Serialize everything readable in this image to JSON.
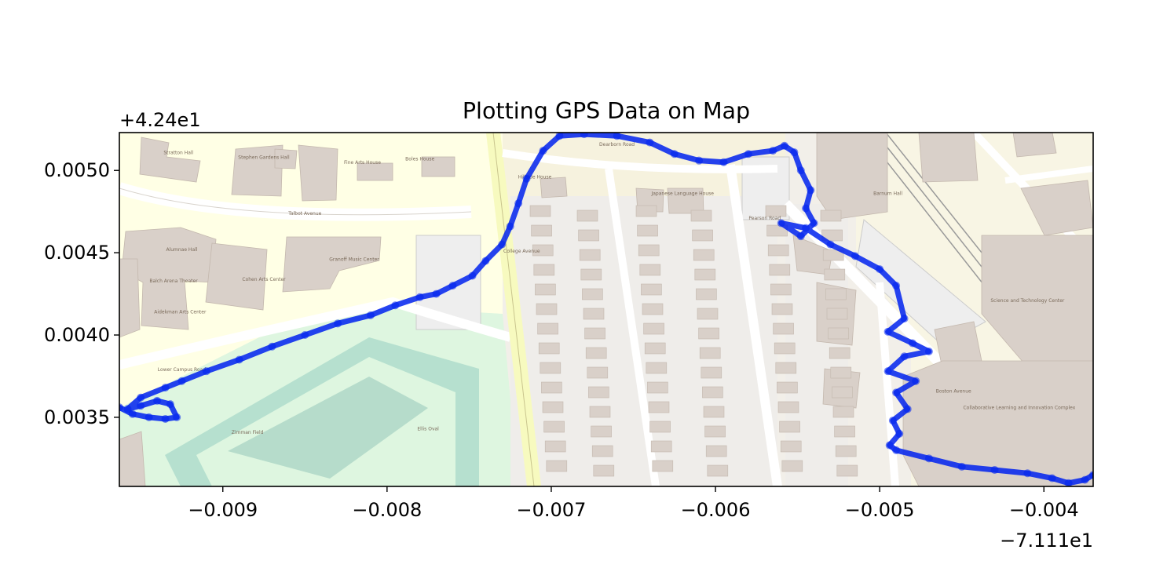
{
  "chart_data": {
    "type": "scatter",
    "title": "Plotting GPS Data on Map",
    "xlabel": "",
    "ylabel": "",
    "x_offset_label": "−7.111e1",
    "y_offset_label": "+4.24e1",
    "xlim": [
      -0.00963,
      -0.0037
    ],
    "ylim": [
      0.00308,
      0.00523
    ],
    "xticks": [
      {
        "value": -0.009,
        "label": "−0.009"
      },
      {
        "value": -0.008,
        "label": "−0.008"
      },
      {
        "value": -0.007,
        "label": "−0.007"
      },
      {
        "value": -0.006,
        "label": "−0.006"
      },
      {
        "value": -0.005,
        "label": "−0.005"
      },
      {
        "value": -0.004,
        "label": "−0.004"
      }
    ],
    "yticks": [
      {
        "value": 0.0035,
        "label": "0.0035"
      },
      {
        "value": 0.004,
        "label": "0.0040"
      },
      {
        "value": 0.0045,
        "label": "0.0045"
      },
      {
        "value": 0.005,
        "label": "0.0050"
      }
    ],
    "grid": false,
    "series": [
      {
        "color": "#0022ee",
        "x": [
          -0.00963,
          -0.00955,
          -0.00945,
          -0.00935,
          -0.00928,
          -0.00932,
          -0.0094,
          -0.0095,
          -0.00958,
          -0.0095,
          -0.00935,
          -0.00925,
          -0.0091,
          -0.0089,
          -0.0087,
          -0.0085,
          -0.0083,
          -0.0081,
          -0.00795,
          -0.0078,
          -0.0077,
          -0.0076,
          -0.00748,
          -0.0074,
          -0.0073,
          -0.00725,
          -0.0072,
          -0.00715,
          -0.00705,
          -0.00695,
          -0.0068,
          -0.0066,
          -0.0064,
          -0.00625,
          -0.0061,
          -0.00595,
          -0.0058,
          -0.00565,
          -0.00558,
          -0.00552,
          -0.00548,
          -0.00542,
          -0.00545,
          -0.0054,
          -0.00548,
          -0.0056,
          -0.00545,
          -0.0053,
          -0.00515,
          -0.005,
          -0.0049,
          -0.00485,
          -0.00495,
          -0.0048,
          -0.0047,
          -0.00485,
          -0.00495,
          -0.00478,
          -0.0049,
          -0.00483,
          -0.00492,
          -0.00488,
          -0.00494,
          -0.0049,
          -0.0047,
          -0.0045,
          -0.0043,
          -0.0041,
          -0.00395,
          -0.00385,
          -0.00375,
          -0.0037
        ],
        "y": [
          0.00356,
          0.00352,
          0.0035,
          0.00349,
          0.0035,
          0.00358,
          0.0036,
          0.00357,
          0.00355,
          0.00362,
          0.00368,
          0.00372,
          0.00378,
          0.00385,
          0.00393,
          0.004,
          0.00407,
          0.00412,
          0.00418,
          0.00423,
          0.00425,
          0.0043,
          0.00436,
          0.00445,
          0.00455,
          0.00466,
          0.0048,
          0.00495,
          0.00512,
          0.00521,
          0.00522,
          0.00521,
          0.00517,
          0.0051,
          0.00506,
          0.00505,
          0.0051,
          0.00512,
          0.00515,
          0.00511,
          0.005,
          0.00488,
          0.00477,
          0.00468,
          0.0046,
          0.00468,
          0.00465,
          0.00455,
          0.00448,
          0.0044,
          0.0043,
          0.0041,
          0.00402,
          0.00395,
          0.0039,
          0.00387,
          0.00378,
          0.00372,
          0.00365,
          0.00355,
          0.00348,
          0.0034,
          0.00333,
          0.0033,
          0.00325,
          0.0032,
          0.00318,
          0.00316,
          0.00313,
          0.0031,
          0.00312,
          0.00315
        ]
      }
    ],
    "map_labels": [
      {
        "text": "Stratton Hall",
        "x": -0.00927,
        "y": 0.0051
      },
      {
        "text": "Stephen Gardens Hall",
        "x": -0.00875,
        "y": 0.00507
      },
      {
        "text": "Fine Arts House",
        "x": -0.00815,
        "y": 0.00504
      },
      {
        "text": "Boles House",
        "x": -0.0078,
        "y": 0.00506
      },
      {
        "text": "Alumnae Hall",
        "x": -0.00925,
        "y": 0.00451
      },
      {
        "text": "Balch Arena Theater",
        "x": -0.0093,
        "y": 0.00432
      },
      {
        "text": "Cohen Arts Center",
        "x": -0.00875,
        "y": 0.00433
      },
      {
        "text": "Aidekman Arts Center",
        "x": -0.00926,
        "y": 0.00413
      },
      {
        "text": "Granoff Music Center",
        "x": -0.0082,
        "y": 0.00445
      },
      {
        "text": "Zimman Field",
        "x": -0.00885,
        "y": 0.0034
      },
      {
        "text": "Ellis Oval",
        "x": -0.00775,
        "y": 0.00342
      },
      {
        "text": "Hillside House",
        "x": -0.0071,
        "y": 0.00495
      },
      {
        "text": "Japanese Language House",
        "x": -0.0062,
        "y": 0.00485
      },
      {
        "text": "Barnum Hall",
        "x": -0.00495,
        "y": 0.00485
      },
      {
        "text": "Science and Technology Center",
        "x": -0.0041,
        "y": 0.0042
      },
      {
        "text": "Collaborative Learning and Innovation Complex",
        "x": -0.00415,
        "y": 0.00355
      },
      {
        "text": "Talbot Avenue",
        "x": -0.0085,
        "y": 0.00473
      },
      {
        "text": "Lower Campus Road",
        "x": -0.00925,
        "y": 0.00378
      },
      {
        "text": "College Avenue",
        "x": -0.00718,
        "y": 0.0045
      },
      {
        "text": "Dearborn Road",
        "x": -0.0066,
        "y": 0.00515
      },
      {
        "text": "Boston Avenue",
        "x": -0.00455,
        "y": 0.00365
      },
      {
        "text": "Pearson Road",
        "x": -0.0057,
        "y": 0.0047
      }
    ]
  }
}
